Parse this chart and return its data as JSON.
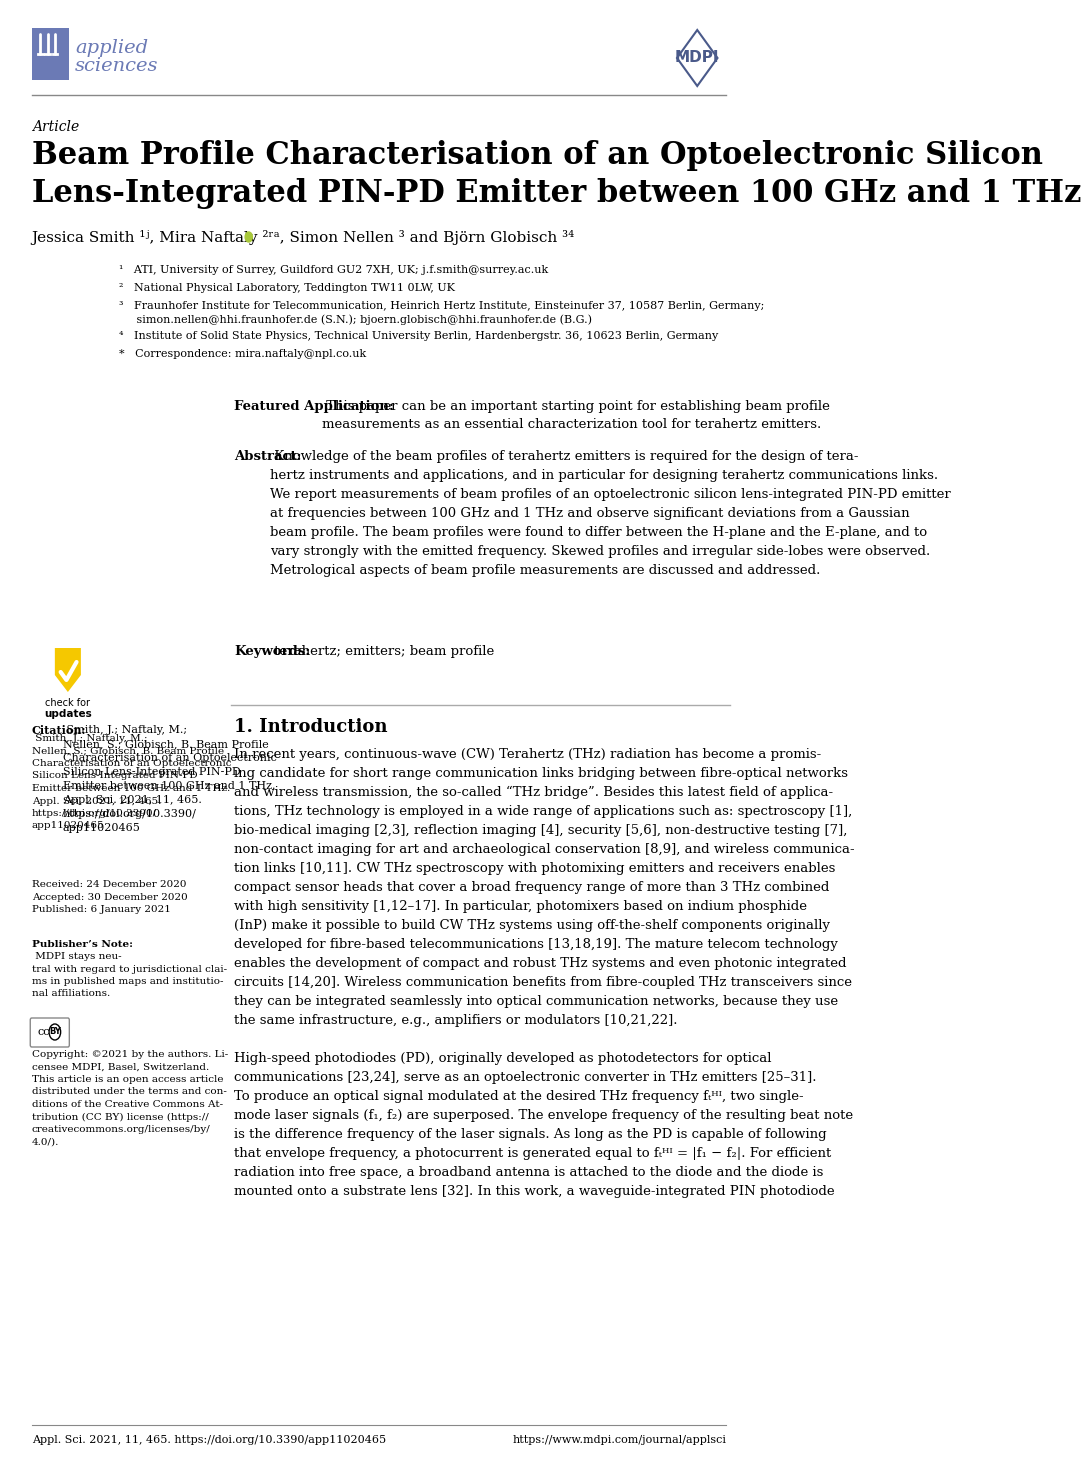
{
  "page_bg": "#ffffff",
  "header_line_color": "#888888",
  "footer_line_color": "#888888",
  "logo_color": "#6b7ab5",
  "mdpi_color": "#4a5a8a",
  "article_label": "Article",
  "title": "Beam Profile Characterisation of an Optoelectronic Silicon\nLens-Integrated PIN-PD Emitter between 100 GHz and 1 THz",
  "authors": "Jessica Smith ¹ʲ, Mira Naftaly ²ʳᵃ, Simon Nellen ³ and Björn Globisch ³⁴",
  "affil1": "¹   ATI, University of Surrey, Guildford GU2 7XH, UK; j.f.smith@surrey.ac.uk",
  "affil2": "²   National Physical Laboratory, Teddington TW11 0LW, UK",
  "affil3": "³   Fraunhofer Institute for Telecommunication, Heinrich Hertz Institute, Einsteinufer 37, 10587 Berlin, Germany;\n     simon.nellen@hhi.fraunhofer.de (S.N.); bjoern.globisch@hhi.fraunhofer.de (B.G.)",
  "affil4": "⁴   Institute of Solid State Physics, Technical University Berlin, Hardenbergstr. 36, 10623 Berlin, Germany",
  "affil5": "*   Correspondence: mira.naftaly@npl.co.uk",
  "featured_bold": "Featured Application:",
  "featured_text": " This paper can be an important starting point for establishing beam profile\nmeasurements as an essential characterization tool for terahertz emitters.",
  "abstract_bold": "Abstract:",
  "abstract_text": " Knowledge of the beam profiles of terahertz emitters is required for the design of tera-\nhertz instruments and applications, and in particular for designing terahertz communications links.\nWe report measurements of beam profiles of an optoelectronic silicon lens-integrated PIN-PD emitter\nat frequencies between 100 GHz and 1 THz and observe significant deviations from a Gaussian\nbeam profile. The beam profiles were found to differ between the H-plane and the E-plane, and to\nvary strongly with the emitted frequency. Skewed profiles and irregular side-lobes were observed.\nMetrological aspects of beam profile measurements are discussed and addressed.",
  "keywords_bold": "Keywords:",
  "keywords_text": " terahertz; emitters; beam profile",
  "section_title": "1. Introduction",
  "intro_text": "In recent years, continuous-wave (CW) Terahertz (THz) radiation has become a promis-\ning candidate for short range communication links bridging between fibre-optical networks\nand wireless transmission, the so-called “THz bridge”. Besides this latest field of applica-\ntions, THz technology is employed in a wide range of applications such as: spectroscopy [1],\nbio-medical imaging [2,3], reflection imaging [4], security [5,6], non-destructive testing [7],\nnon-contact imaging for art and archaeological conservation [8,9], and wireless communica-\ntion links [10,11]. CW THz spectroscopy with photomixing emitters and receivers enables\ncompact sensor heads that cover a broad frequency range of more than 3 THz combined\nwith high sensitivity [1,12–17]. In particular, photomixers based on indium phosphide\n(InP) make it possible to build CW THz systems using off-the-shelf components originally\ndeveloped for fibre-based telecommunications [13,18,19]. The mature telecom technology\nenables the development of compact and robust THz systems and even photonic integrated\ncircuits [14,20]. Wireless communication benefits from fibre-coupled THz transceivers since\nthey can be integrated seamlessly into optical communication networks, because they use\nthe same infrastructure, e.g., amplifiers or modulators [10,21,22].\n\nHigh-speed photodiodes (PD), originally developed as photodetectors for optical\ncommunications [23,24], serve as an optoelectronic converter in THz emitters [25–31].\nTo produce an optical signal modulated at the desired THz frequency fₜᴴᴵ, two single-\nmode laser signals (f₁, f₂) are superposed. The envelope frequency of the resulting beat note\nis the difference frequency of the laser signals. As long as the PD is capable of following\nthat envelope frequency, a photocurrent is generated equal to fₜᴴᴵ = |f₁ − f₂|. For efficient\nradiation into free space, a broadband antenna is attached to the diode and the diode is\nmounted onto a substrate lens [32]. In this work, a waveguide-integrated PIN photodiode",
  "citation_bold": "Citation:",
  "citation_text": " Smith, J.; Naftaly, M.;\nNellen, S.; Globisch, B. Beam Profile\nCharacterisation of an Optoelectronic\nSilicon Lens-Integrated PIN-PD\nEmitter between 100 GHz and 1 THz.\nAppl. Sci. 2021, 11, 465.\nhttps://doi.org/10.3390/\napp11020465",
  "received_text": "Received: 24 December 2020\nAccepted: 30 December 2020\nPublished: 6 January 2021",
  "publishers_bold": "Publisher’s Note:",
  "publishers_text": " MDPI stays neu-\ntral with regard to jurisdictional clai-\nms in published maps and institutio-\nnal affiliations.",
  "copyright_text": "Copyright: ©2021 by the authors. Li-\ncensee MDPI, Basel, Switzerland.\nThis article is an open access article\ndistributed under the terms and con-\nditions of the Creative Commons At-\ntribution (CC BY) license (https://\ncreativecommons.org/licenses/by/\n4.0/).",
  "footer_left": "Appl. Sci. 2021, 11, 465. https://doi.org/10.3390/app11020465",
  "footer_right": "https://www.mdpi.com/journal/applsci"
}
